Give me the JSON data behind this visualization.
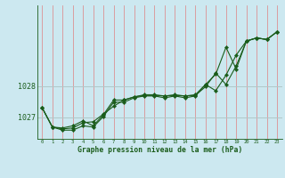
{
  "title": "Graphe pression niveau de la mer (hPa)",
  "background_color": "#cce8f0",
  "line_color": "#1a5c1a",
  "grid_color_v": "#e08080",
  "grid_color_h": "#b0c8c8",
  "xlim": [
    -0.5,
    23.5
  ],
  "ylim": [
    1026.3,
    1030.6
  ],
  "yticks": [
    1027,
    1028
  ],
  "ytick_labels": [
    "1027",
    "1028"
  ],
  "xticks": [
    0,
    1,
    2,
    3,
    4,
    5,
    6,
    7,
    8,
    9,
    10,
    11,
    12,
    13,
    14,
    15,
    16,
    17,
    18,
    19,
    20,
    21,
    22,
    23
  ],
  "series": [
    {
      "x": [
        0,
        1,
        2,
        3,
        4,
        5,
        6,
        7,
        8,
        9,
        10,
        11,
        12,
        13,
        14,
        15,
        16,
        17,
        18,
        19,
        20,
        21,
        22,
        23
      ],
      "y": [
        1027.3,
        1026.68,
        1026.62,
        1026.65,
        1026.82,
        1026.85,
        1027.1,
        1027.35,
        1027.55,
        1027.65,
        1027.72,
        1027.72,
        1027.68,
        1027.72,
        1027.68,
        1027.72,
        1028.05,
        1027.85,
        1028.35,
        1029.0,
        1029.45,
        1029.55,
        1029.5,
        1029.75
      ]
    },
    {
      "x": [
        0,
        1,
        2,
        3,
        4,
        5,
        6,
        7,
        8,
        9,
        10,
        11,
        12,
        13,
        14,
        15,
        16,
        17,
        18,
        19,
        20,
        21,
        22,
        23
      ],
      "y": [
        1027.3,
        1026.68,
        1026.58,
        1026.58,
        1026.72,
        1026.68,
        1027.02,
        1027.48,
        1027.48,
        1027.62,
        1027.68,
        1027.68,
        1027.62,
        1027.68,
        1027.62,
        1027.68,
        1028.05,
        1028.38,
        1029.25,
        1028.55,
        1029.45,
        1029.55,
        1029.5,
        1029.75
      ]
    },
    {
      "x": [
        0,
        1,
        2,
        3,
        4,
        5,
        6,
        7,
        8,
        9,
        10,
        11,
        12,
        13,
        14,
        15,
        16,
        17,
        18,
        19,
        20,
        21,
        22,
        23
      ],
      "y": [
        1027.3,
        1026.68,
        1026.65,
        1026.72,
        1026.88,
        1026.72,
        1027.08,
        1027.55,
        1027.55,
        1027.65,
        1027.7,
        1027.7,
        1027.68,
        1027.7,
        1027.68,
        1027.7,
        1027.98,
        1028.42,
        1028.05,
        1028.65,
        1029.45,
        1029.55,
        1029.5,
        1029.75
      ]
    }
  ]
}
